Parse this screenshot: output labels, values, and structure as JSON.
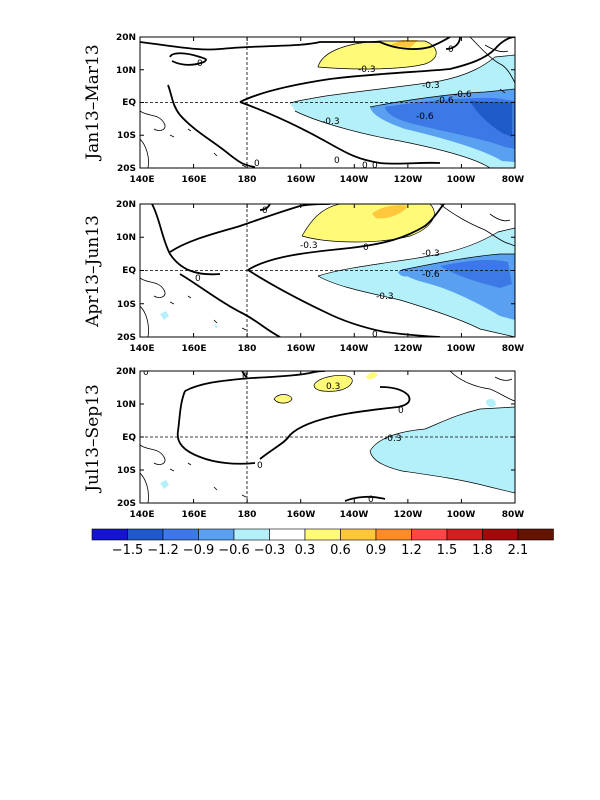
{
  "panels": [
    {
      "period": "Jan13–Mar13",
      "contour_labels": [
        "0",
        "0",
        "0",
        "0",
        "0",
        "0",
        "-0.3",
        "-0.3",
        "-0.3",
        "-0.6",
        "-0.6",
        "-0.6"
      ]
    },
    {
      "period": "Apr13–Jun13",
      "contour_labels": [
        "0",
        "0",
        "0",
        "0",
        "-0.3",
        "-0.3",
        "-0.3",
        "-0.6"
      ]
    },
    {
      "period": "Jul13–Sep13",
      "contour_labels": [
        "0",
        "0",
        "0",
        "0",
        "0",
        "0.3",
        "-0.3"
      ]
    }
  ],
  "axes": {
    "lat_ticks": [
      "20N",
      "10N",
      "EQ",
      "10S",
      "20S"
    ],
    "lon_ticks": [
      "140E",
      "160E",
      "180",
      "160W",
      "140W",
      "120W",
      "100W",
      "80W"
    ]
  },
  "colorbar": {
    "labels": [
      "−1.5",
      "−1.2",
      "−0.9",
      "−0.6",
      "−0.3",
      "0.3",
      "0.6",
      "0.9",
      "1.2",
      "1.5",
      "1.8",
      "2.1"
    ],
    "colors": [
      "#1414d2",
      "#1e5ac8",
      "#3c78e6",
      "#5aa0f0",
      "#b4f0fa",
      "#ffffff",
      "#fffa78",
      "#ffc83c",
      "#ff8c28",
      "#ff4646",
      "#d21e1e",
      "#a00a0a",
      "#641400"
    ]
  },
  "anomaly_colors": {
    "pos_0_3": "#fffa78",
    "pos_0_6": "#ffc83c",
    "neg_0_3": "#b4f0fa",
    "neg_0_6": "#5aa0f0",
    "neg_0_9": "#3c78e6",
    "neg_1_2": "#1e5ac8"
  }
}
